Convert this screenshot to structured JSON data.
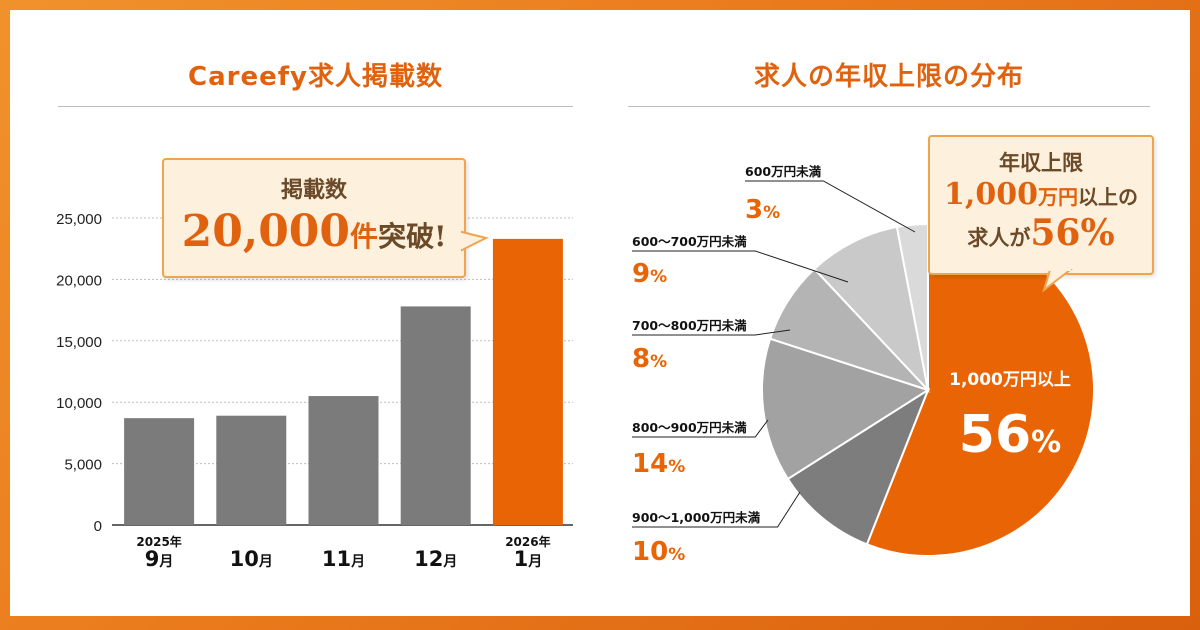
{
  "left_chart": {
    "title": "Careefy求人掲載数",
    "callout": {
      "line1": "掲載数",
      "number": "20,000",
      "unit": "件",
      "suffix": "突破!"
    }
  },
  "right_chart": {
    "title": "求人の年収上限の分布",
    "callout": {
      "line1": "年収上限",
      "amount": "1,000",
      "amount_unit": "万円",
      "line2_suffix": "以上の",
      "line3_prefix": "求人が",
      "percent": "56%"
    }
  },
  "colors": {
    "accent": "#e96405",
    "bar_gray": "#7b7b7b",
    "pie_grays": [
      "#7d7d7d",
      "#a2a2a2",
      "#b4b4b4",
      "#c9c9c9",
      "#dadada",
      "#eeeeee"
    ]
  },
  "chart_data": [
    {
      "type": "bar",
      "title": "Careefy求人掲載数",
      "categories": [
        {
          "year": "2025年",
          "month": "9",
          "unit": "月"
        },
        {
          "year": "",
          "month": "10",
          "unit": "月"
        },
        {
          "year": "",
          "month": "11",
          "unit": "月"
        },
        {
          "year": "",
          "month": "12",
          "unit": "月"
        },
        {
          "year": "2026年",
          "month": "1",
          "unit": "月"
        }
      ],
      "values": [
        8700,
        8900,
        10500,
        17800,
        23300
      ],
      "highlight_index": 4,
      "ylim": [
        0,
        25000
      ],
      "yticks": [
        0,
        5000,
        10000,
        15000,
        20000,
        25000
      ],
      "ytick_labels": [
        "0",
        "5,000",
        "10,000",
        "15,000",
        "20,000",
        "25,000"
      ],
      "grid": true
    },
    {
      "type": "pie",
      "title": "求人の年収上限の分布",
      "slices": [
        {
          "label": "1,000万円以上",
          "value": 56,
          "num": "56",
          "sign": "%"
        },
        {
          "label": "900〜1,000万円未満",
          "value": 10,
          "num": "10",
          "sign": "%"
        },
        {
          "label": "800〜900万円未満",
          "value": 14,
          "num": "14",
          "sign": "%"
        },
        {
          "label": "700〜800万円未満",
          "value": 8,
          "num": "8",
          "sign": "%"
        },
        {
          "label": "600〜700万円未満",
          "value": 9,
          "num": "9",
          "sign": "%"
        },
        {
          "label": "600万円未満",
          "value": 3,
          "num": "3",
          "sign": "%"
        }
      ]
    }
  ]
}
